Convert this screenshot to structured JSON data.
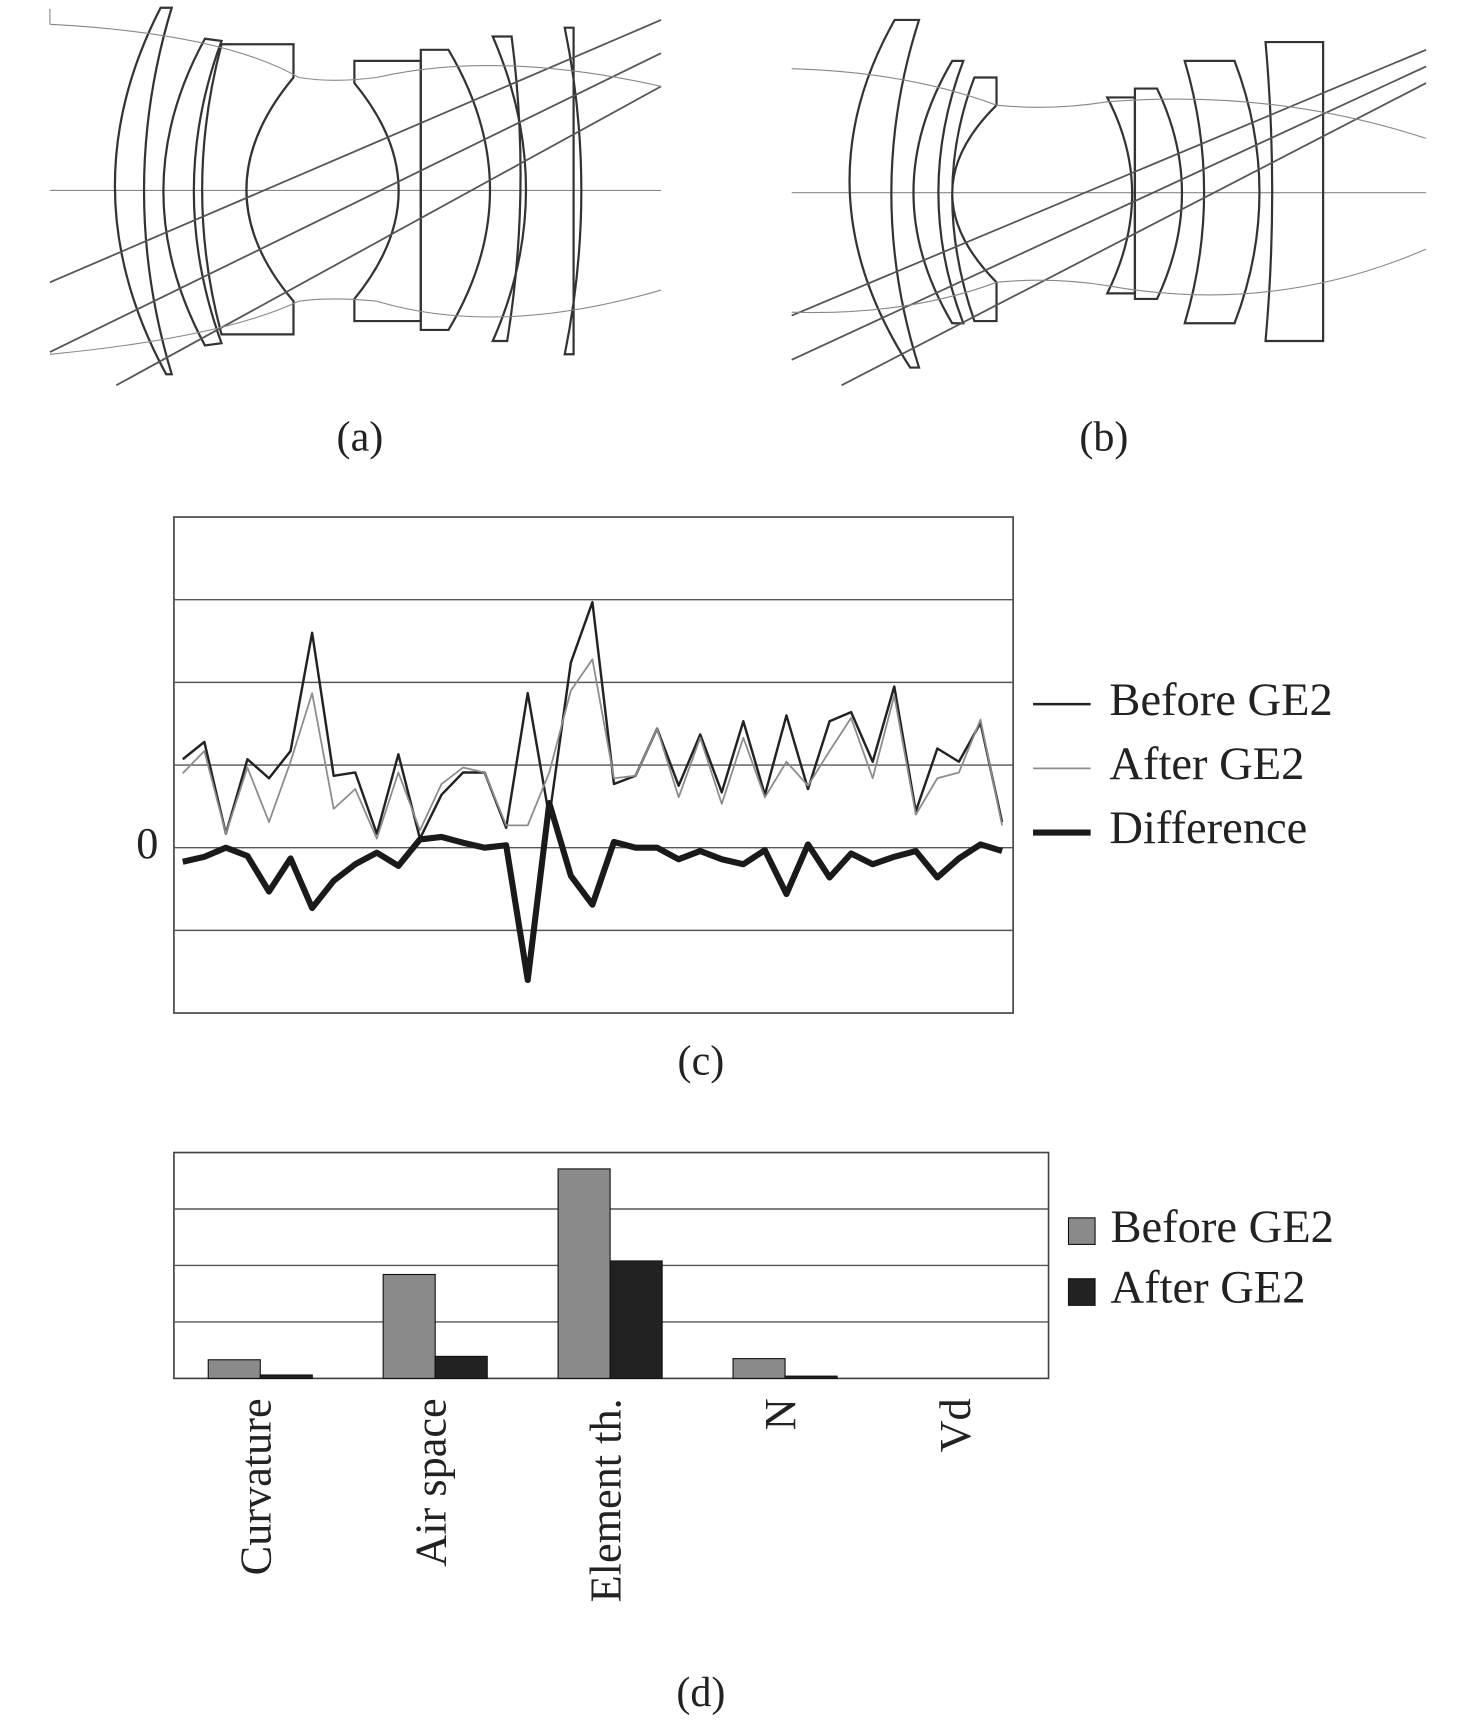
{
  "captions": [
    "(a)",
    "(b)",
    "(c)",
    "(d)"
  ],
  "chart_data": [
    {
      "type": "line",
      "ylim": [
        -2,
        4
      ],
      "yticks": [
        {
          "value": -1,
          "label": null
        },
        0,
        {
          "value": 1,
          "label": null
        },
        {
          "value": 2,
          "label": null
        },
        {
          "value": 3,
          "label": null
        }
      ],
      "grid": true,
      "legend": "right",
      "series": [
        {
          "name": "Before GE2",
          "color": "#222222",
          "values": [
            1.07,
            1.28,
            0.17,
            1.07,
            0.84,
            1.17,
            2.6,
            0.87,
            0.91,
            0.17,
            1.13,
            0.11,
            0.64,
            0.91,
            0.91,
            0.24,
            1.87,
            0.37,
            2.24,
            2.97,
            0.77,
            0.87,
            1.44,
            0.75,
            1.37,
            0.67,
            1.53,
            0.64,
            1.6,
            0.71,
            1.53,
            1.64,
            1.04,
            1.95,
            0.44,
            1.2,
            1.04,
            1.51,
            0.31
          ]
        },
        {
          "name": "After GE2",
          "color": "#8c8c8c",
          "values": [
            0.9,
            1.17,
            0.17,
            0.97,
            0.31,
            1.04,
            1.87,
            0.47,
            0.71,
            0.11,
            0.91,
            0.21,
            0.77,
            0.97,
            0.91,
            0.27,
            0.27,
            0.91,
            1.9,
            2.28,
            0.84,
            0.87,
            1.44,
            0.61,
            1.33,
            0.53,
            1.33,
            0.61,
            1.04,
            0.75,
            1.17,
            1.57,
            0.84,
            1.84,
            0.4,
            0.84,
            0.91,
            1.55,
            0.27
          ]
        },
        {
          "name": "Difference",
          "color": "#1a1a1a",
          "values": [
            -0.17,
            -0.11,
            0,
            -0.1,
            -0.53,
            -0.13,
            -0.73,
            -0.4,
            -0.2,
            -0.06,
            -0.22,
            0.1,
            0.13,
            0.06,
            0,
            0.03,
            -1.6,
            0.54,
            -0.34,
            -0.69,
            0.07,
            0,
            0,
            -0.14,
            -0.04,
            -0.14,
            -0.2,
            -0.03,
            -0.56,
            0.04,
            -0.36,
            -0.07,
            -0.2,
            -0.11,
            -0.04,
            -0.36,
            -0.13,
            0.04,
            -0.04
          ]
        }
      ]
    },
    {
      "type": "bar",
      "categories": [
        "Curvature",
        "Air space",
        "Element th.",
        "N",
        "Vd"
      ],
      "ylim": [
        0,
        4
      ],
      "yticks": [
        {
          "value": 1,
          "label": null
        },
        {
          "value": 2,
          "label": null
        },
        {
          "value": 3,
          "label": null
        }
      ],
      "grid": true,
      "legend": "right",
      "series": [
        {
          "name": "Before GE2",
          "color": "#8a8a8a",
          "values": [
            0.33,
            1.84,
            3.71,
            0.35,
            0
          ]
        },
        {
          "name": "After GE2",
          "color": "#222222",
          "values": [
            0.06,
            0.39,
            2.08,
            0.04,
            0
          ]
        }
      ]
    }
  ]
}
